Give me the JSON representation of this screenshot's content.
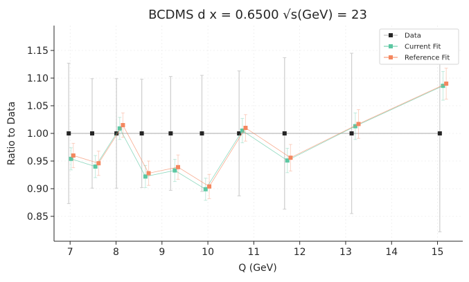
{
  "chart_data": {
    "type": "scatter",
    "title": "BCDMS d x = 0.6500 √s(GeV) = 23",
    "xlabel": "Q (GeV)",
    "ylabel": "Ratio to Data",
    "xlim": [
      6.65,
      15.55
    ],
    "ylim": [
      0.805,
      1.195
    ],
    "xticks": [
      7,
      8,
      9,
      10,
      11,
      12,
      13,
      14,
      15
    ],
    "yticks": [
      0.85,
      0.9,
      0.95,
      1.0,
      1.05,
      1.1,
      1.15
    ],
    "grid": true,
    "legend_position": "top-right",
    "series": [
      {
        "name": "Data",
        "color": "#262626",
        "x": [
          6.97,
          7.48,
          8.01,
          8.56,
          9.19,
          9.87,
          10.68,
          11.67,
          13.13,
          15.05
        ],
        "y": [
          1.0,
          1.0,
          1.0,
          1.0,
          1.0,
          1.0,
          1.0,
          1.0,
          1.0,
          1.0
        ],
        "err": [
          0.127,
          0.099,
          0.099,
          0.098,
          0.103,
          0.105,
          0.113,
          0.137,
          0.145,
          0.178
        ]
      },
      {
        "name": "Current Fit",
        "color": "#5cc7a2",
        "x": [
          7.02,
          7.55,
          8.08,
          8.64,
          9.28,
          9.95,
          10.75,
          11.73,
          13.21,
          15.12
        ],
        "y": [
          0.954,
          0.94,
          1.009,
          0.922,
          0.933,
          0.899,
          1.005,
          0.951,
          1.013,
          1.086
        ],
        "err": [
          0.02,
          0.02,
          0.02,
          0.02,
          0.02,
          0.02,
          0.022,
          0.022,
          0.024,
          0.026
        ]
      },
      {
        "name": "Reference Fit",
        "color": "#f4875f",
        "x": [
          7.07,
          7.62,
          8.15,
          8.71,
          9.35,
          10.03,
          10.82,
          11.8,
          13.28,
          15.19
        ],
        "y": [
          0.96,
          0.946,
          1.015,
          0.928,
          0.939,
          0.904,
          1.01,
          0.956,
          1.017,
          1.09
        ],
        "err": [
          0.022,
          0.022,
          0.022,
          0.022,
          0.022,
          0.022,
          0.024,
          0.024,
          0.026,
          0.028
        ]
      }
    ]
  }
}
